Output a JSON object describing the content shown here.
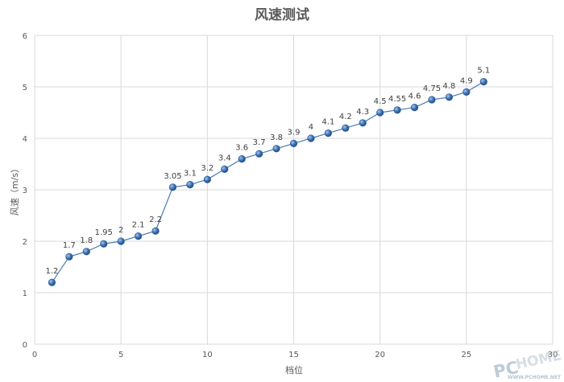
{
  "chart_data": {
    "type": "line",
    "title": "风速测试",
    "xlabel": "档位",
    "ylabel": "风速（m/s）",
    "xlim": [
      0,
      30
    ],
    "ylim": [
      0,
      6
    ],
    "x_ticks": [
      0,
      5,
      10,
      15,
      20,
      25,
      30
    ],
    "y_ticks": [
      0,
      1,
      2,
      3,
      4,
      5,
      6
    ],
    "grid": true,
    "legend": "none",
    "colors": {
      "line": "#4a7ab5",
      "marker": "#3a6fb0",
      "grid": "#d9d9d9"
    },
    "series": [
      {
        "x": [
          1,
          2,
          3,
          4,
          5,
          6,
          7,
          8,
          9,
          10,
          11,
          12,
          13,
          14,
          15,
          16,
          17,
          18,
          19,
          20,
          21,
          22,
          23,
          24,
          25,
          26
        ],
        "values": [
          1.2,
          1.7,
          1.8,
          1.95,
          2,
          2.1,
          2.2,
          3.05,
          3.1,
          3.2,
          3.4,
          3.6,
          3.7,
          3.8,
          3.9,
          4,
          4.1,
          4.2,
          4.3,
          4.5,
          4.55,
          4.6,
          4.75,
          4.8,
          4.9,
          5.1
        ],
        "labels": [
          "1.2",
          "1.7",
          "1.8",
          "1.95",
          "2",
          "2.1",
          "2.2",
          "3.05",
          "3.1",
          "3.2",
          "3.4",
          "3.6",
          "3.7",
          "3.8",
          "3.9",
          "4",
          "4.1",
          "4.2",
          "4.3",
          "4.5",
          "4.55",
          "4.6",
          "4.75",
          "4.8",
          "4.9",
          "5.1"
        ]
      }
    ]
  },
  "watermark": {
    "brand": "PCHOME",
    "url": "WWW.PCHOME.NET"
  }
}
